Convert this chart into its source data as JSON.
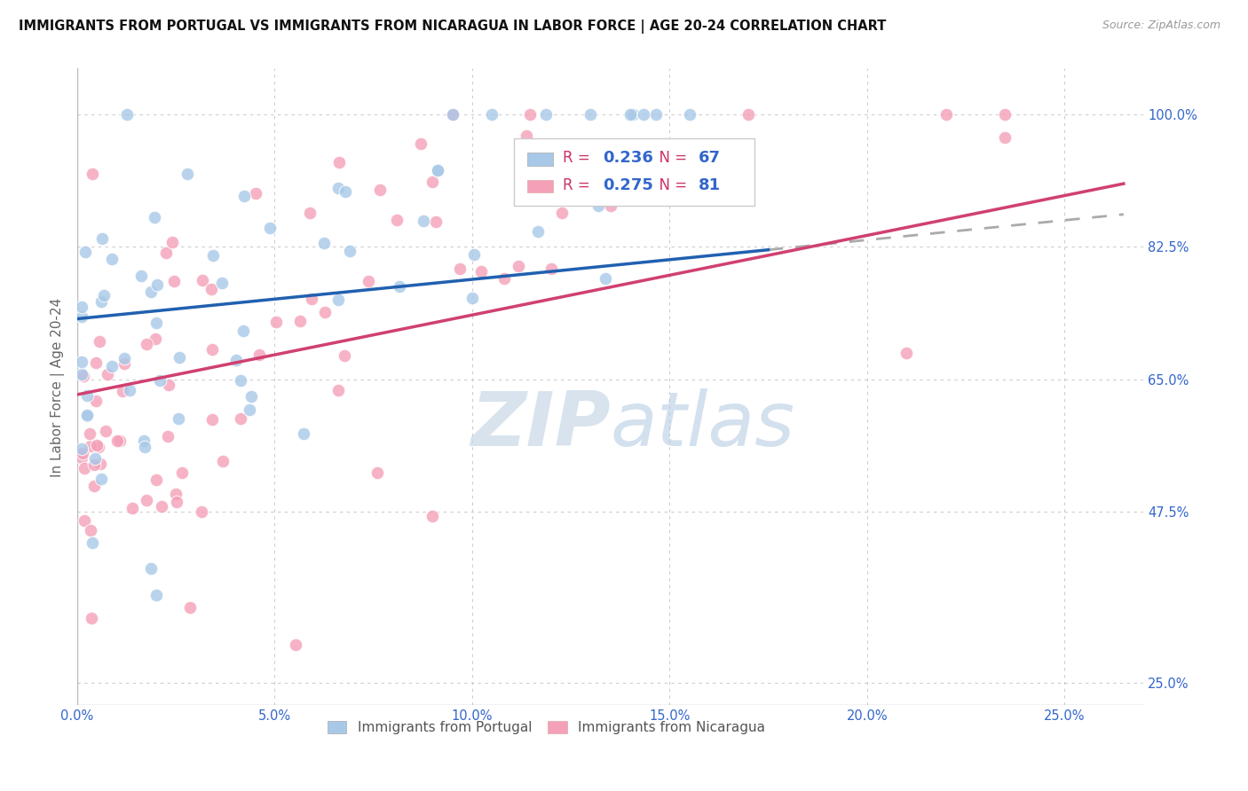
{
  "title": "IMMIGRANTS FROM PORTUGAL VS IMMIGRANTS FROM NICARAGUA IN LABOR FORCE | AGE 20-24 CORRELATION CHART",
  "source": "Source: ZipAtlas.com",
  "ylabel_label": "In Labor Force | Age 20-24",
  "legend_blue_label": "Immigrants from Portugal",
  "legend_pink_label": "Immigrants from Nicaragua",
  "R_blue": 0.236,
  "N_blue": 67,
  "R_pink": 0.275,
  "N_pink": 81,
  "blue_color": "#a8c8e8",
  "pink_color": "#f4a0b8",
  "line_blue": "#2060b0",
  "line_pink": "#d04070",
  "axis_label_color": "#3366cc",
  "right_tick_color": "#3366cc",
  "watermark_color": "#c8d8e8",
  "xlim": [
    0.0,
    0.27
  ],
  "ylim": [
    0.22,
    1.06
  ],
  "ytick_positions": [
    0.25,
    0.475,
    0.65,
    0.825,
    1.0
  ],
  "ytick_labels": [
    "25.0%",
    "47.5%",
    "65.0%",
    "82.5%",
    "100.0%"
  ],
  "xtick_positions": [
    0.0,
    0.05,
    0.1,
    0.15,
    0.2,
    0.25
  ],
  "xtick_labels": [
    "0.0%",
    "5.0%",
    "10.0%",
    "15.0%",
    "20.0%",
    "25.0%"
  ],
  "blue_line_solid_end": 0.175,
  "blue_line_dash_start": 0.175,
  "blue_line_dash_end": 0.265
}
